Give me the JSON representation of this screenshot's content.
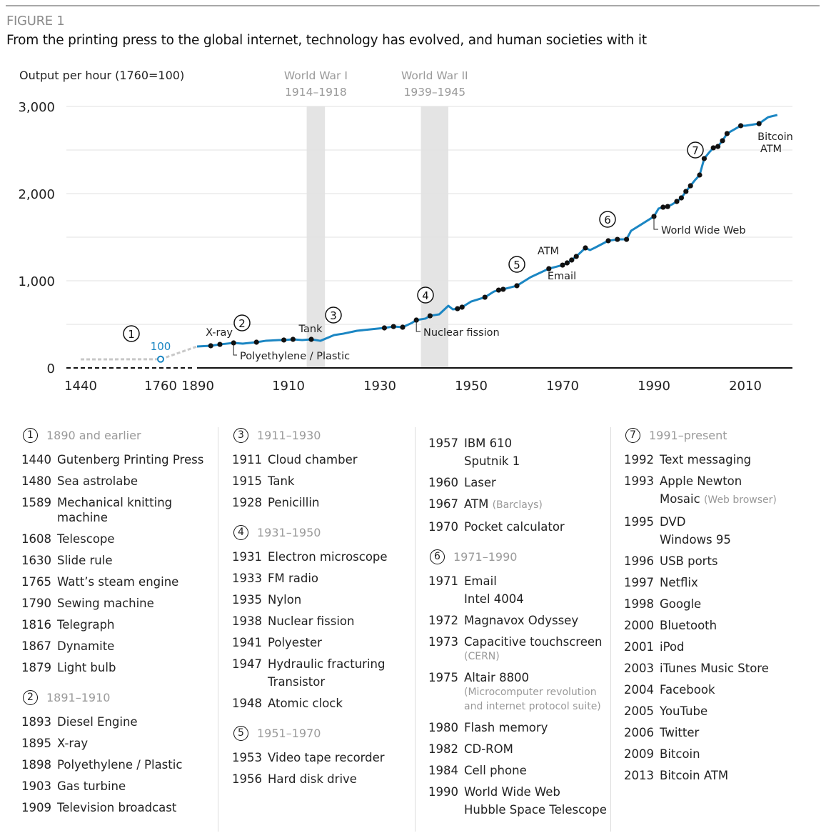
{
  "figure_label": "FIGURE 1",
  "title": "From the printing press to the global internet, technology has evolved, and human societies with it",
  "chart_data": {
    "type": "line",
    "ylabel": "Output per hour (1760=100)",
    "ylim": [
      0,
      3000
    ],
    "yticks": [
      "0",
      "1,000",
      "2,000",
      "3,000"
    ],
    "ytick_values": [
      0,
      1000,
      2000,
      3000
    ],
    "xticks": [
      "1440",
      "1760",
      "1890",
      "1910",
      "1930",
      "1950",
      "1970",
      "1990",
      "2010"
    ],
    "xtick_values": [
      1440,
      1760,
      1890,
      1910,
      1930,
      1950,
      1970,
      1990,
      2010
    ],
    "x_axis_broken_before": 1890,
    "grid": true,
    "colors": {
      "series": "#1b86c3",
      "early": "#c8c8c8",
      "shading": "#e4e4e4",
      "dots": "#111111"
    },
    "shaded_periods": [
      {
        "label": "World War I",
        "range_label": "1914–1918",
        "start": 1914,
        "end": 1918
      },
      {
        "label": "World War II",
        "range_label": "1939–1945",
        "start": 1939,
        "end": 1945
      }
    ],
    "early_series": {
      "x": [
        1440,
        1760,
        1890
      ],
      "y": [
        98,
        100,
        246
      ]
    },
    "base_label": "100",
    "series": {
      "x": [
        1890,
        1893,
        1895,
        1898,
        1900,
        1903,
        1905,
        1908,
        1909,
        1911,
        1913,
        1915,
        1917,
        1920,
        1922,
        1925,
        1928,
        1931,
        1933,
        1935,
        1937,
        1938,
        1940,
        1941,
        1943,
        1945,
        1946,
        1947,
        1948,
        1950,
        1953,
        1955,
        1956,
        1957,
        1960,
        1963,
        1967,
        1970,
        1971,
        1972,
        1973,
        1974,
        1975,
        1976,
        1977,
        1980,
        1982,
        1984,
        1985,
        1987,
        1990,
        1991,
        1992,
        1993,
        1994,
        1995,
        1996,
        1997,
        1998,
        1999,
        2000,
        2001,
        2002,
        2003,
        2004,
        2005,
        2006,
        2009,
        2010,
        2013,
        2015,
        2017
      ],
      "y": [
        246,
        254,
        270,
        287,
        279,
        295,
        311,
        320,
        320,
        328,
        320,
        328,
        311,
        377,
        393,
        426,
        443,
        459,
        475,
        467,
        516,
        549,
        566,
        598,
        615,
        713,
        672,
        680,
        697,
        762,
        811,
        877,
        893,
        902,
        943,
        1041,
        1139,
        1180,
        1205,
        1238,
        1279,
        1328,
        1377,
        1352,
        1377,
        1459,
        1475,
        1475,
        1574,
        1639,
        1738,
        1828,
        1844,
        1852,
        1877,
        1910,
        1951,
        2025,
        2090,
        2156,
        2213,
        2402,
        2467,
        2525,
        2541,
        2607,
        2689,
        2779,
        2779,
        2803,
        2877,
        2902
      ]
    },
    "innovation_years": [
      1893,
      1895,
      1898,
      1903,
      1909,
      1911,
      1915,
      1931,
      1933,
      1935,
      1938,
      1941,
      1947,
      1948,
      1953,
      1956,
      1957,
      1960,
      1967,
      1970,
      1971,
      1972,
      1973,
      1975,
      1980,
      1982,
      1984,
      1990,
      1992,
      1993,
      1995,
      1996,
      1997,
      1998,
      2000,
      2001,
      2003,
      2004,
      2005,
      2006,
      2009,
      2013
    ],
    "period_markers": [
      "1",
      "2",
      "3",
      "4",
      "5",
      "6",
      "7"
    ],
    "annotations": [
      {
        "text": "X-ray",
        "year": 1895
      },
      {
        "text": "Polyethylene / Plastic",
        "year": 1898
      },
      {
        "text": "Tank",
        "year": 1915
      },
      {
        "text": "Nuclear fission",
        "year": 1938
      },
      {
        "text": "ATM",
        "year": 1967
      },
      {
        "text": "Email",
        "year": 1971
      },
      {
        "text": "World Wide Web",
        "year": 1990
      },
      {
        "text": "Bitcoin",
        "year": 2013
      },
      {
        "text": "ATM",
        "year": 2013
      }
    ]
  },
  "legend": {
    "columns": [
      {
        "sections": [
          {
            "num": "1",
            "range": "1890 and earlier",
            "entries": [
              {
                "year": "1440",
                "items": [
                  {
                    "label": "Gutenberg Printing Press"
                  }
                ]
              },
              {
                "year": "1480",
                "items": [
                  {
                    "label": "Sea astrolabe"
                  }
                ]
              },
              {
                "year": "1589",
                "items": [
                  {
                    "label": "Mechanical knitting machine"
                  }
                ]
              },
              {
                "year": "1608",
                "items": [
                  {
                    "label": "Telescope"
                  }
                ]
              },
              {
                "year": "1630",
                "items": [
                  {
                    "label": "Slide rule"
                  }
                ]
              },
              {
                "year": "1765",
                "items": [
                  {
                    "label": "Watt’s steam engine"
                  }
                ]
              },
              {
                "year": "1790",
                "items": [
                  {
                    "label": "Sewing machine"
                  }
                ]
              },
              {
                "year": "1816",
                "items": [
                  {
                    "label": "Telegraph"
                  }
                ]
              },
              {
                "year": "1867",
                "items": [
                  {
                    "label": "Dynamite"
                  }
                ]
              },
              {
                "year": "1879",
                "items": [
                  {
                    "label": "Light bulb"
                  }
                ]
              }
            ]
          },
          {
            "num": "2",
            "range": "1891–1910",
            "entries": [
              {
                "year": "1893",
                "items": [
                  {
                    "label": "Diesel Engine"
                  }
                ]
              },
              {
                "year": "1895",
                "items": [
                  {
                    "label": "X-ray"
                  }
                ]
              },
              {
                "year": "1898",
                "items": [
                  {
                    "label": "Polyethylene / Plastic"
                  }
                ]
              },
              {
                "year": "1903",
                "items": [
                  {
                    "label": "Gas turbine"
                  }
                ]
              },
              {
                "year": "1909",
                "items": [
                  {
                    "label": "Television broadcast"
                  }
                ]
              }
            ]
          }
        ]
      },
      {
        "sections": [
          {
            "num": "3",
            "range": "1911–1930",
            "entries": [
              {
                "year": "1911",
                "items": [
                  {
                    "label": "Cloud chamber"
                  }
                ]
              },
              {
                "year": "1915",
                "items": [
                  {
                    "label": "Tank"
                  }
                ]
              },
              {
                "year": "1928",
                "items": [
                  {
                    "label": "Penicillin"
                  }
                ]
              }
            ]
          },
          {
            "num": "4",
            "range": "1931–1950",
            "entries": [
              {
                "year": "1931",
                "items": [
                  {
                    "label": "Electron microscope"
                  }
                ]
              },
              {
                "year": "1933",
                "items": [
                  {
                    "label": "FM radio"
                  }
                ]
              },
              {
                "year": "1935",
                "items": [
                  {
                    "label": "Nylon"
                  }
                ]
              },
              {
                "year": "1938",
                "items": [
                  {
                    "label": "Nuclear fission"
                  }
                ]
              },
              {
                "year": "1941",
                "items": [
                  {
                    "label": "Polyester"
                  }
                ]
              },
              {
                "year": "1947",
                "items": [
                  {
                    "label": "Hydraulic fracturing"
                  },
                  {
                    "label": "Transistor"
                  }
                ]
              },
              {
                "year": "1948",
                "items": [
                  {
                    "label": "Atomic clock"
                  }
                ]
              }
            ]
          },
          {
            "num": "5",
            "range": "1951–1970",
            "entries": [
              {
                "year": "1953",
                "items": [
                  {
                    "label": "Video tape recorder"
                  }
                ]
              },
              {
                "year": "1956",
                "items": [
                  {
                    "label": "Hard disk drive"
                  }
                ]
              }
            ]
          }
        ]
      },
      {
        "sections": [
          {
            "num": "",
            "range": "",
            "entries": [
              {
                "year": "1957",
                "items": [
                  {
                    "label": "IBM 610"
                  },
                  {
                    "label": "Sputnik 1"
                  }
                ]
              },
              {
                "year": "1960",
                "items": [
                  {
                    "label": "Laser"
                  }
                ]
              },
              {
                "year": "1967",
                "items": [
                  {
                    "label": "ATM",
                    "note": "(Barclays)"
                  }
                ]
              },
              {
                "year": "1970",
                "items": [
                  {
                    "label": "Pocket calculator"
                  }
                ]
              }
            ]
          },
          {
            "num": "6",
            "range": "1971–1990",
            "entries": [
              {
                "year": "1971",
                "items": [
                  {
                    "label": "Email"
                  },
                  {
                    "label": "Intel 4004"
                  }
                ]
              },
              {
                "year": "1972",
                "items": [
                  {
                    "label": "Magnavox Odyssey"
                  }
                ]
              },
              {
                "year": "1973",
                "items": [
                  {
                    "label": "Capacitive touchscreen",
                    "note_below": "(CERN)"
                  }
                ]
              },
              {
                "year": "1975",
                "items": [
                  {
                    "label": "Altair 8800",
                    "note_below": "(Microcomputer revolution and internet protocol suite)"
                  }
                ]
              },
              {
                "year": "1980",
                "items": [
                  {
                    "label": "Flash memory"
                  }
                ]
              },
              {
                "year": "1982",
                "items": [
                  {
                    "label": "CD-ROM"
                  }
                ]
              },
              {
                "year": "1984",
                "items": [
                  {
                    "label": "Cell phone"
                  }
                ]
              },
              {
                "year": "1990",
                "items": [
                  {
                    "label": "World Wide Web"
                  },
                  {
                    "label": "Hubble Space Telescope"
                  }
                ]
              }
            ]
          }
        ]
      },
      {
        "sections": [
          {
            "num": "7",
            "range": "1991–present",
            "entries": [
              {
                "year": "1992",
                "items": [
                  {
                    "label": "Text messaging"
                  }
                ]
              },
              {
                "year": "1993",
                "items": [
                  {
                    "label": "Apple Newton"
                  },
                  {
                    "label": "Mosaic",
                    "note": "(Web browser)"
                  }
                ]
              },
              {
                "year": "1995",
                "items": [
                  {
                    "label": "DVD"
                  },
                  {
                    "label": "Windows 95"
                  }
                ]
              },
              {
                "year": "1996",
                "items": [
                  {
                    "label": "USB ports"
                  }
                ]
              },
              {
                "year": "1997",
                "items": [
                  {
                    "label": "Netflix"
                  }
                ]
              },
              {
                "year": "1998",
                "items": [
                  {
                    "label": "Google"
                  }
                ]
              },
              {
                "year": "2000",
                "items": [
                  {
                    "label": "Bluetooth"
                  }
                ]
              },
              {
                "year": "2001",
                "items": [
                  {
                    "label": "iPod"
                  }
                ]
              },
              {
                "year": "2003",
                "items": [
                  {
                    "label": "iTunes Music Store"
                  }
                ]
              },
              {
                "year": "2004",
                "items": [
                  {
                    "label": "Facebook"
                  }
                ]
              },
              {
                "year": "2005",
                "items": [
                  {
                    "label": "YouTube"
                  }
                ]
              },
              {
                "year": "2006",
                "items": [
                  {
                    "label": "Twitter"
                  }
                ]
              },
              {
                "year": "2009",
                "items": [
                  {
                    "label": "Bitcoin"
                  }
                ]
              },
              {
                "year": "2013",
                "items": [
                  {
                    "label": "Bitcoin ATM"
                  }
                ]
              }
            ]
          }
        ]
      }
    ]
  }
}
